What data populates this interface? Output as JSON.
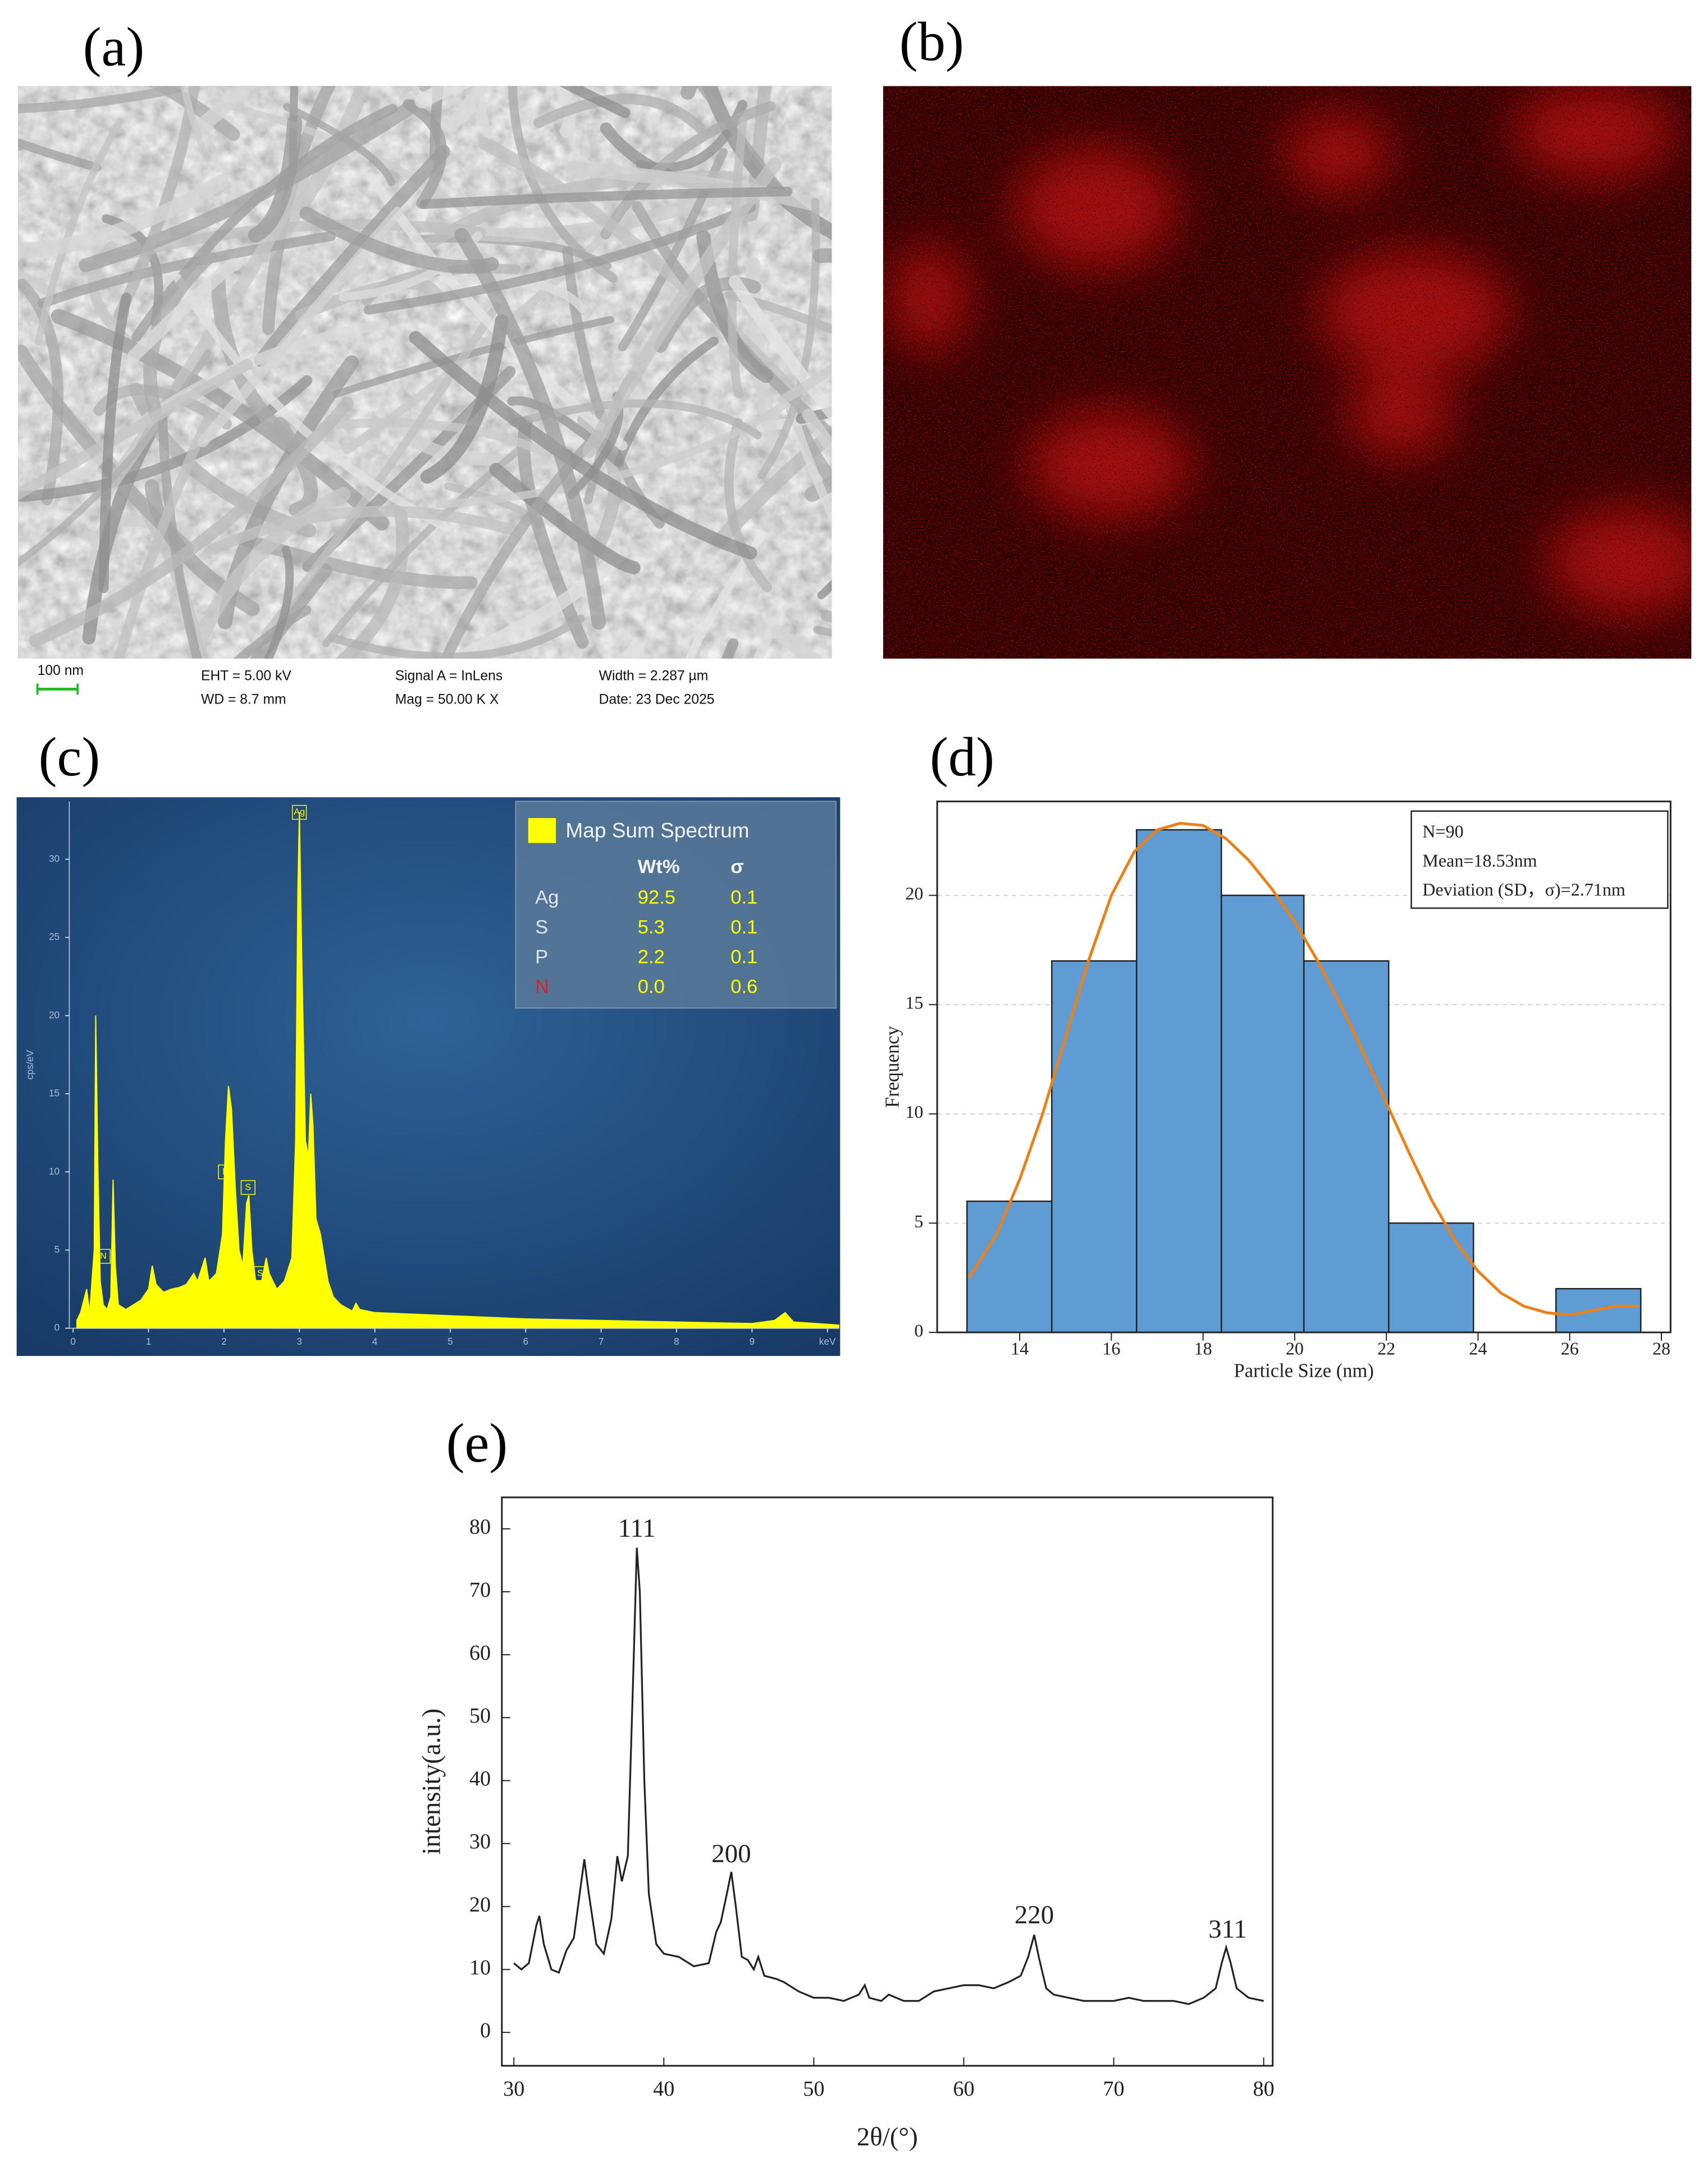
{
  "panel_labels": [
    "(a)",
    "(b)",
    "(c)",
    "(d)",
    "(e)"
  ],
  "sem_info": {
    "scale_bar": "100 nm",
    "eht": "EHT = 5.00 kV",
    "wd": "WD = 8.7 mm",
    "signal": "Signal A = InLens",
    "mag": "Mag = 50.00 K X",
    "width": "Width = 2.287 µm",
    "date": "Date: 23 Dec 2025"
  },
  "chart_data": [
    {
      "type": "area",
      "y_label": "cps/eV",
      "color": "#ffff00",
      "x": [
        0.05,
        0.1,
        0.18,
        0.22,
        0.28,
        0.3,
        0.33,
        0.36,
        0.4,
        0.45,
        0.5,
        0.53,
        0.56,
        0.6,
        0.7,
        0.8,
        0.9,
        1.0,
        1.05,
        1.1,
        1.2,
        1.3,
        1.4,
        1.5,
        1.6,
        1.65,
        1.75,
        1.8,
        1.9,
        1.98,
        2.02,
        2.06,
        2.1,
        2.15,
        2.2,
        2.25,
        2.3,
        2.33,
        2.37,
        2.42,
        2.5,
        2.56,
        2.6,
        2.7,
        2.8,
        2.9,
        2.95,
        2.98,
        3.0,
        3.03,
        3.08,
        3.12,
        3.15,
        3.18,
        3.22,
        3.28,
        3.33,
        3.38,
        3.45,
        3.55,
        3.7,
        3.75,
        3.8,
        4,
        5,
        6,
        7,
        8,
        9,
        9.3,
        9.44,
        9.55,
        10,
        10.15
      ],
      "values": [
        0.5,
        1,
        2.5,
        1,
        5,
        20,
        10,
        3,
        1.5,
        1.2,
        2,
        9.5,
        4,
        1.5,
        1.2,
        1.5,
        1.8,
        2.5,
        4,
        2.8,
        2.3,
        2.5,
        2.6,
        2.8,
        3.5,
        3,
        4.5,
        3,
        3.5,
        6,
        12,
        15.5,
        14,
        9,
        5,
        4,
        8,
        8.5,
        5,
        3,
        3,
        4.5,
        3.5,
        2.5,
        3,
        4.5,
        12,
        28,
        33,
        24,
        12,
        11,
        15,
        13,
        7,
        6,
        4.5,
        3,
        2,
        1.5,
        1.1,
        1.6,
        1.2,
        1,
        0.8,
        0.6,
        0.5,
        0.4,
        0.3,
        0.5,
        1.0,
        0.4,
        0.25,
        0.2
      ],
      "xlim": [
        -0.05,
        10.15
      ],
      "ylim": [
        0,
        33.7
      ],
      "xticks": [
        0,
        1,
        2,
        3,
        4,
        5,
        6,
        7,
        8,
        9,
        {
          "value": 10,
          "label": "keV"
        }
      ],
      "yticks": [
        0,
        5,
        10,
        15,
        20,
        25,
        30
      ],
      "annotations": [
        {
          "text": "Ag",
          "x": 3.0,
          "y": 33
        },
        {
          "text": "P",
          "x": 2.02,
          "y": 10
        },
        {
          "text": "S",
          "x": 2.32,
          "y": 9
        },
        {
          "text": "S",
          "x": 2.48,
          "y": 3.5
        },
        {
          "text": "N",
          "x": 0.4,
          "y": 4.6
        }
      ],
      "legend_table": {
        "title": "Map Sum Spectrum",
        "columns": [
          "Wt%",
          "σ"
        ],
        "rows": [
          [
            "Ag",
            "92.5",
            "0.1"
          ],
          [
            "S",
            "5.3",
            "0.1"
          ],
          [
            "P",
            "2.2",
            "0.1"
          ],
          [
            "N",
            "0.0",
            "0.6"
          ]
        ],
        "element_colors": [
          "#dfe6ee",
          "#dfe6ee",
          "#dfe6ee",
          "#e02020"
        ],
        "value_color": "#ffff00"
      }
    },
    {
      "type": "histogram",
      "x_label": "Particle Size (nm)",
      "y_label": "Frequency",
      "color": "#5e9cd3",
      "bins": [
        12.85,
        14.7,
        16.55,
        18.4,
        20.2,
        22.05,
        23.9,
        25.7,
        27.55
      ],
      "values": [
        6,
        17,
        23,
        20,
        17,
        5,
        0,
        2
      ],
      "curve": {
        "color": "#f07f13",
        "x": [
          12.9,
          13.5,
          14,
          14.5,
          15,
          15.5,
          16,
          16.5,
          17,
          17.5,
          18,
          18.5,
          19,
          19.5,
          20,
          20.5,
          21,
          21.5,
          22,
          22.5,
          23,
          23.5,
          24,
          24.5,
          25,
          25.5,
          26,
          26.5,
          27,
          27.5
        ],
        "values": [
          2.5,
          4.5,
          7,
          10,
          13.5,
          17,
          20,
          22,
          23,
          23.3,
          23.2,
          22.6,
          21.6,
          20.3,
          18.8,
          17,
          15,
          12.8,
          10.5,
          8.2,
          6,
          4.2,
          2.8,
          1.8,
          1.2,
          0.9,
          0.8,
          1.0,
          1.2,
          1.2
        ]
      },
      "xlim": [
        12.2,
        28.2
      ],
      "ylim": [
        0,
        24.3
      ],
      "xticks": [
        14,
        16,
        18,
        20,
        22,
        24,
        26,
        28
      ],
      "yticks": [
        0,
        5,
        10,
        15,
        20
      ],
      "grid": true,
      "text_box": [
        "N=90",
        "Mean=18.53nm",
        "Deviation (SD，σ)=2.71nm"
      ]
    },
    {
      "type": "line",
      "x_label": "2θ/(°)",
      "y_label": "intensity(a.u.)",
      "color": "#222222",
      "x": [
        30,
        30.5,
        31,
        31.5,
        31.7,
        32,
        32.5,
        33,
        33.5,
        34,
        34.5,
        34.7,
        35,
        35.5,
        36,
        36.5,
        36.9,
        37.2,
        37.6,
        38,
        38.2,
        38.4,
        38.7,
        39,
        39.5,
        40,
        41,
        42,
        43,
        43.5,
        43.8,
        44.2,
        44.5,
        44.8,
        45.2,
        45.6,
        46,
        46.3,
        46.7,
        47.5,
        48,
        49,
        50,
        51,
        52,
        53,
        53.4,
        53.7,
        54.5,
        55,
        56,
        57,
        58,
        59,
        60,
        61,
        62,
        63,
        63.8,
        64.3,
        64.7,
        65,
        65.5,
        66,
        67,
        68,
        69,
        70,
        71,
        72,
        73,
        74,
        75,
        76,
        76.8,
        77.2,
        77.5,
        77.8,
        78.2,
        79,
        80
      ],
      "values": [
        11,
        10,
        11,
        17,
        18.5,
        14,
        10,
        9.5,
        13,
        15,
        24,
        27.5,
        22,
        14,
        12.5,
        18,
        28,
        24,
        28,
        60,
        77,
        70,
        40,
        22,
        14,
        12.5,
        12,
        10.5,
        11,
        16,
        17.5,
        22,
        25.5,
        20,
        12,
        11.5,
        10,
        12,
        9,
        8.5,
        8,
        6.5,
        5.5,
        5.5,
        5,
        6,
        7.5,
        5.5,
        5,
        6,
        5,
        5,
        6.5,
        7,
        7.5,
        7.5,
        7,
        8,
        9,
        12,
        15.5,
        12,
        7,
        6,
        5.5,
        5,
        5,
        5,
        5.5,
        5,
        5,
        5,
        4.5,
        5.5,
        7,
        11,
        13.5,
        11,
        7,
        5.5,
        5
      ],
      "xlim": [
        29.2,
        80.6
      ],
      "ylim": [
        -5.3,
        85
      ],
      "xticks": [
        30,
        40,
        50,
        60,
        70,
        80
      ],
      "yticks": [
        0,
        10,
        20,
        30,
        40,
        50,
        60,
        70,
        80
      ],
      "annotations": [
        {
          "text": "111",
          "x": 38.2,
          "y": 79.7
        },
        {
          "text": "200",
          "x": 44.5,
          "y": 28
        },
        {
          "text": "220",
          "x": 64.7,
          "y": 18.3
        },
        {
          "text": "311",
          "x": 77.6,
          "y": 16
        }
      ]
    }
  ]
}
